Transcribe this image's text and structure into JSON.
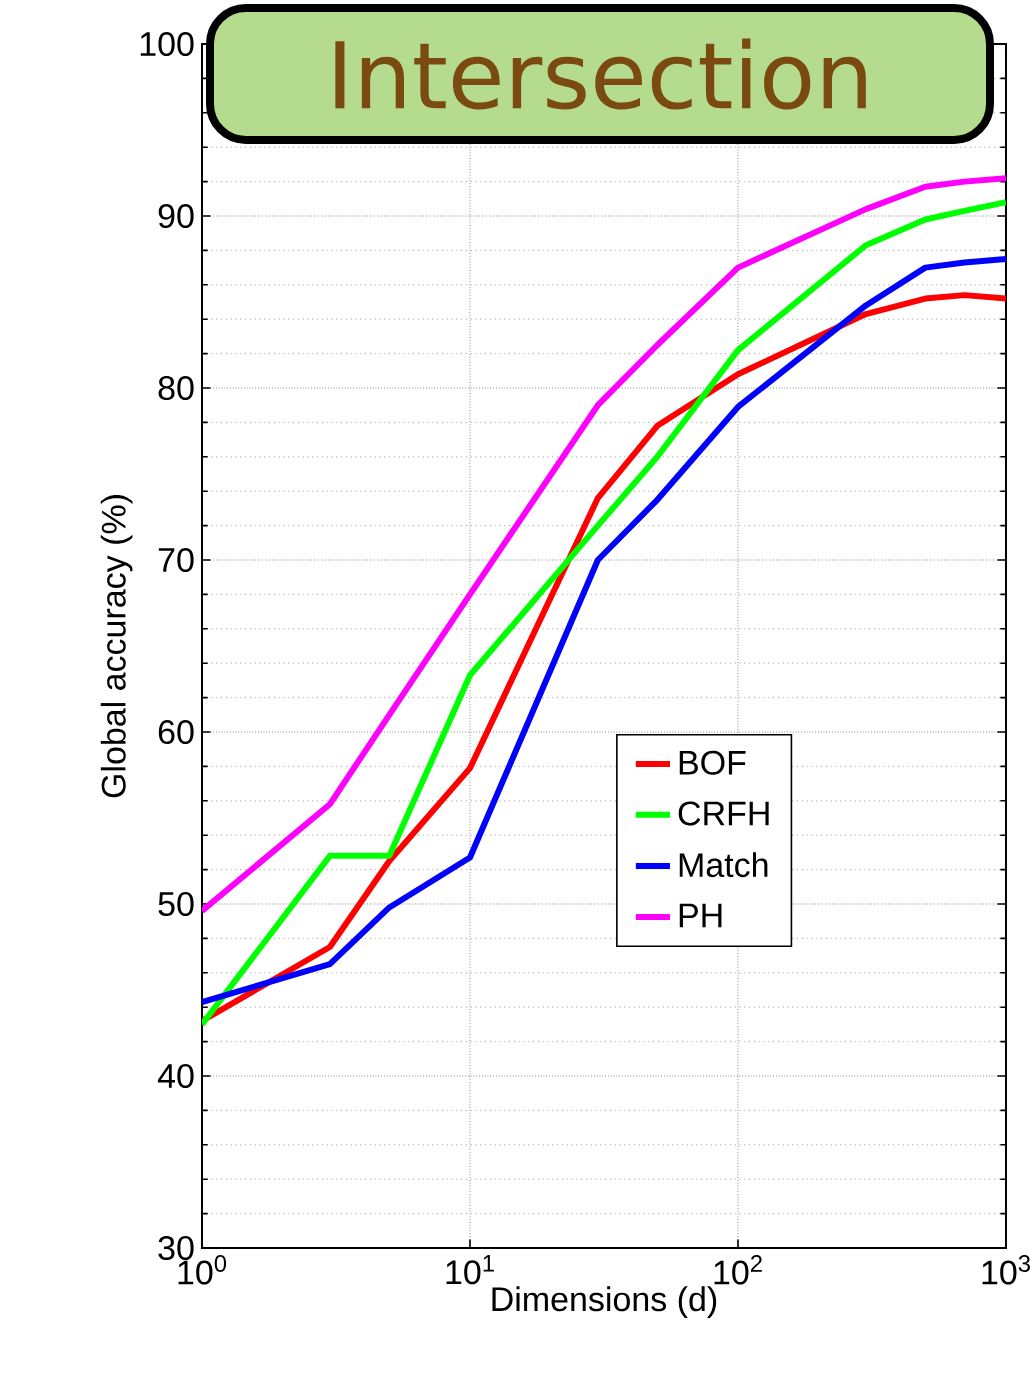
{
  "chart_data": {
    "type": "line",
    "title": "Intersection",
    "xlabel": "Dimensions (d)",
    "ylabel": "Global accuracy (%)",
    "log": "x",
    "x": [
      1,
      3,
      5,
      10,
      30,
      50,
      100,
      300,
      500,
      700,
      1000
    ],
    "series": [
      {
        "name": "BOF",
        "color": "#ff0000",
        "values": [
          43.2,
          47.5,
          52.5,
          57.9,
          73.6,
          77.8,
          80.8,
          84.3,
          85.2,
          85.4,
          85.2
        ]
      },
      {
        "name": "CRFH",
        "color": "#00ff00",
        "values": [
          43.0,
          52.8,
          52.8,
          63.3,
          72.0,
          76.0,
          82.2,
          88.3,
          89.8,
          90.3,
          90.8
        ]
      },
      {
        "name": "Match",
        "color": "#0000ff",
        "values": [
          44.3,
          46.5,
          49.8,
          52.7,
          70.0,
          73.5,
          78.9,
          84.8,
          87.0,
          87.3,
          87.5
        ]
      },
      {
        "name": "PH",
        "color": "#ff00ff",
        "values": [
          49.6,
          55.8,
          61.0,
          68.0,
          79.0,
          82.5,
          87.0,
          90.4,
          91.7,
          92.0,
          92.2
        ]
      }
    ],
    "xlim": [
      1,
      1000
    ],
    "ylim": [
      30,
      100
    ],
    "xticks": [
      {
        "value": 1,
        "label": "10$^{0}$"
      },
      {
        "value": 10,
        "label": "10$^{1}$"
      },
      {
        "value": 100,
        "label": "10$^{2}$"
      },
      {
        "value": 1000,
        "label": "10$^{3}$"
      }
    ],
    "yticks": [
      30,
      40,
      50,
      60,
      70,
      80,
      90,
      100
    ],
    "grid": true,
    "legend": "bottom right",
    "marker": "none",
    "line_style": "solid"
  }
}
